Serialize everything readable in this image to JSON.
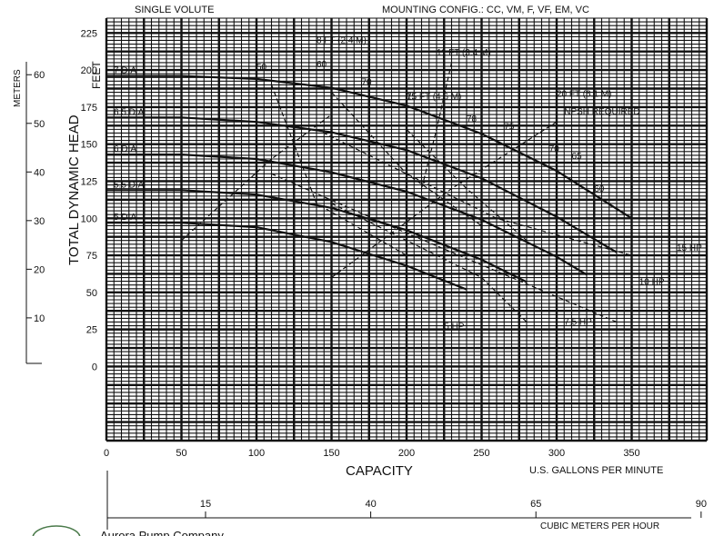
{
  "chart_data": {
    "type": "line",
    "header_left": "SINGLE VOLUTE",
    "header_right": "MOUNTING CONFIG.:  CC,  VM,  F,  VF,  EM,  VC",
    "xlabel": "CAPACITY",
    "x_unit": "U.S. GALLONS PER MINUTE",
    "ylabel": "TOTAL DYNAMIC HEAD",
    "y_unit": "FEET",
    "y2_unit": "METERS",
    "x2_unit": "CUBIC METERS PER HOUR",
    "xlim": [
      0,
      400
    ],
    "ylim": [
      -50,
      235
    ],
    "x_ticks": [
      0,
      50,
      100,
      150,
      200,
      250,
      300,
      350
    ],
    "y_ticks": [
      0,
      25,
      50,
      75,
      100,
      125,
      150,
      175,
      200,
      225
    ],
    "meters_ticks": [
      10,
      20,
      30,
      40,
      50,
      60
    ],
    "cmh_ticks": [
      15,
      40,
      65,
      90
    ],
    "grid": true,
    "series": [
      {
        "name": "7 DIA",
        "x": [
          0,
          50,
          100,
          150,
          200,
          250,
          300,
          350
        ],
        "values": [
          196,
          196,
          194,
          188,
          176,
          157,
          132,
          100
        ]
      },
      {
        "name": "6.5 DIA",
        "x": [
          0,
          50,
          100,
          150,
          200,
          250,
          300,
          340
        ],
        "values": [
          168,
          168,
          165,
          158,
          146,
          127,
          101,
          77
        ]
      },
      {
        "name": "6 DIA",
        "x": [
          0,
          50,
          100,
          150,
          200,
          250,
          300,
          320
        ],
        "values": [
          143,
          143,
          140,
          131,
          118,
          99,
          74,
          62
        ]
      },
      {
        "name": "5.5 DIA",
        "x": [
          0,
          50,
          100,
          150,
          200,
          250,
          280
        ],
        "values": [
          119,
          119,
          116,
          107,
          92,
          72,
          57
        ]
      },
      {
        "name": "5 DIA",
        "x": [
          0,
          50,
          100,
          150,
          200,
          240
        ],
        "values": [
          97,
          97,
          94,
          84,
          68,
          52
        ]
      }
    ],
    "labels": {
      "efficiency": [
        "50",
        "60",
        "70",
        "75",
        "78",
        "75",
        "70",
        "65",
        "60"
      ],
      "power": [
        "5 HP",
        "7.5 HP",
        "10 HP",
        "15 HP"
      ],
      "npsh": [
        "8 FT (2.4 M)",
        "11 FT (3.4 M)",
        "15 FT (4.6 M)",
        "20 FT (6.1 M)",
        "NPSH REQUIRED"
      ]
    }
  },
  "footer": {
    "company": "Aurora Pump Company"
  }
}
